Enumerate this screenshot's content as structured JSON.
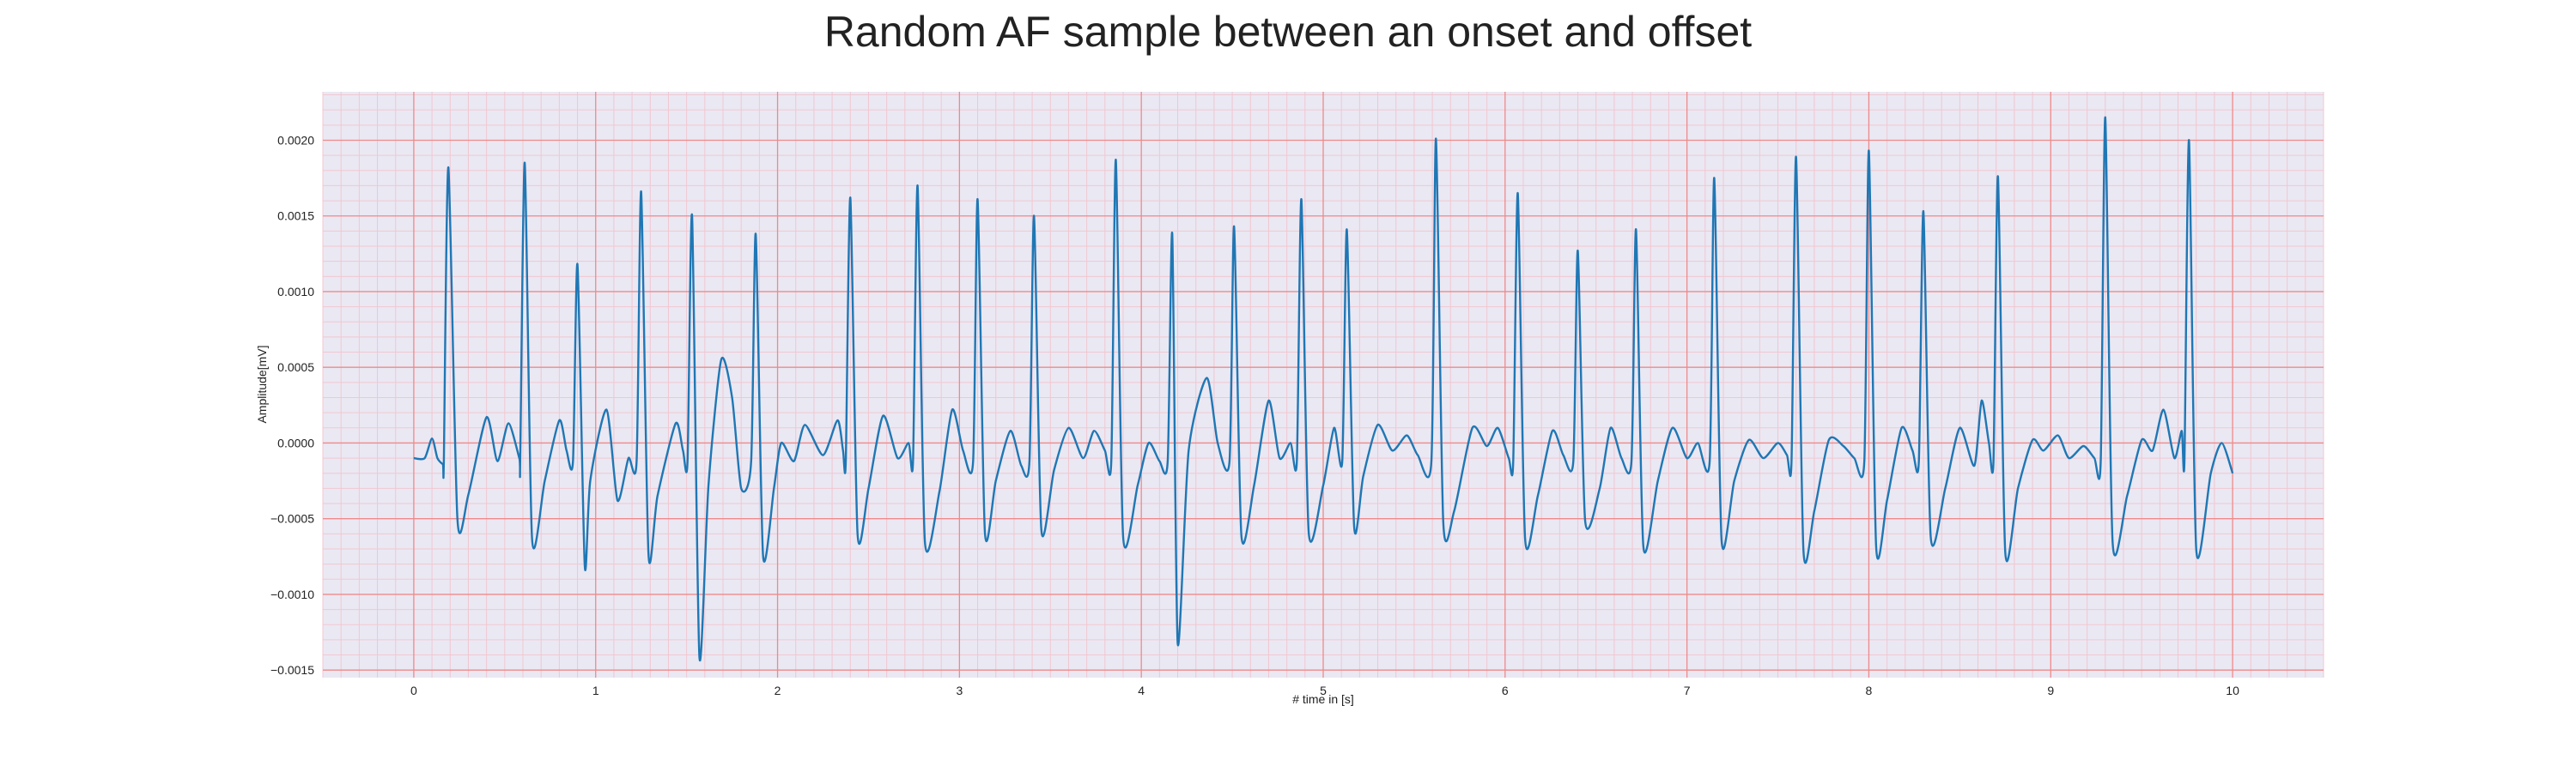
{
  "chart_data": {
    "type": "line",
    "title": "Random AF sample between an onset and offset",
    "xlabel": "# time in [s]",
    "ylabel": "Amplitude[mV]",
    "xlim": [
      -0.5,
      10.5
    ],
    "ylim": [
      -0.00155,
      0.00232
    ],
    "xticks": [
      0,
      1,
      2,
      3,
      4,
      5,
      6,
      7,
      8,
      9,
      10
    ],
    "xtick_labels": [
      "0",
      "1",
      "2",
      "3",
      "4",
      "5",
      "6",
      "7",
      "8",
      "9",
      "10"
    ],
    "yticks": [
      -0.0015,
      -0.001,
      -0.0005,
      0.0,
      0.0005,
      0.001,
      0.0015,
      0.002
    ],
    "ytick_labels": [
      "−0.0015",
      "−0.0010",
      "−0.0005",
      "0.0000",
      "0.0005",
      "0.0010",
      "0.0015",
      "0.0020"
    ],
    "grid": true,
    "colors": {
      "plot_background": "#eae8f3",
      "major_grid": "#ee8a8a",
      "minor_grid": "#f1c7d1",
      "line": "#1f77b4"
    },
    "series": [
      {
        "name": "",
        "r_peaks": [
          [
            0.19,
            0.00182
          ],
          [
            0.61,
            0.00185
          ],
          [
            0.9,
            0.00118
          ],
          [
            1.25,
            0.00166
          ],
          [
            1.53,
            0.0015
          ],
          [
            1.88,
            0.00138
          ],
          [
            2.4,
            0.00162
          ],
          [
            2.77,
            0.0017
          ],
          [
            3.1,
            0.00161
          ],
          [
            3.41,
            0.0015
          ],
          [
            3.86,
            0.00187
          ],
          [
            4.17,
            0.00138
          ],
          [
            4.51,
            0.00143
          ],
          [
            4.88,
            0.00161
          ],
          [
            5.13,
            0.00141
          ],
          [
            5.62,
            0.00201
          ],
          [
            6.07,
            0.00165
          ],
          [
            6.4,
            0.00127
          ],
          [
            6.72,
            0.00141
          ],
          [
            7.15,
            0.00175
          ],
          [
            7.6,
            0.00189
          ],
          [
            8.0,
            0.00193
          ],
          [
            8.3,
            0.00153
          ],
          [
            8.71,
            0.00176
          ],
          [
            9.3,
            0.00215
          ],
          [
            9.76,
            0.002
          ]
        ],
        "s_troughs": [
          [
            0.24,
            -0.0005
          ],
          [
            0.65,
            -0.00063
          ],
          [
            0.94,
            -0.00081
          ],
          [
            1.29,
            -0.00073
          ],
          [
            1.57,
            -0.00141
          ],
          [
            1.92,
            -0.00074
          ],
          [
            2.44,
            -0.0006
          ],
          [
            2.81,
            -0.00065
          ],
          [
            3.14,
            -0.00059
          ],
          [
            3.45,
            -0.00057
          ],
          [
            3.9,
            -0.00062
          ],
          [
            4.2,
            -0.00132
          ],
          [
            4.55,
            -0.00061
          ],
          [
            4.92,
            -0.00059
          ],
          [
            5.17,
            -0.00055
          ],
          [
            5.66,
            -0.00052
          ],
          [
            6.11,
            -0.00063
          ],
          [
            6.44,
            -0.00051
          ],
          [
            6.76,
            -0.00068
          ],
          [
            7.19,
            -0.00064
          ],
          [
            7.64,
            -0.0007
          ],
          [
            8.04,
            -0.00068
          ],
          [
            8.34,
            -0.00062
          ],
          [
            8.75,
            -0.00072
          ],
          [
            9.34,
            -0.00065
          ],
          [
            9.8,
            -0.0007
          ]
        ],
        "baseline_waves": [
          [
            0.0,
            -0.0001
          ],
          [
            0.06,
            -0.0001
          ],
          [
            0.1,
            3e-05
          ],
          [
            0.13,
            -0.0001
          ],
          [
            0.16,
            -0.00014
          ],
          [
            0.3,
            -0.00034
          ],
          [
            0.4,
            0.00017
          ],
          [
            0.46,
            -0.00012
          ],
          [
            0.52,
            0.00013
          ],
          [
            0.58,
            -0.0001
          ],
          [
            0.72,
            -0.00025
          ],
          [
            0.8,
            0.00015
          ],
          [
            0.84,
            -5e-05
          ],
          [
            0.97,
            -0.00025
          ],
          [
            1.06,
            0.00022
          ],
          [
            1.12,
            -0.00038
          ],
          [
            1.18,
            -0.0001
          ],
          [
            1.34,
            -0.00035
          ],
          [
            1.44,
            0.00013
          ],
          [
            1.48,
            -5e-05
          ],
          [
            1.62,
            -0.00028
          ],
          [
            1.69,
            0.00055
          ],
          [
            1.75,
            0.0003
          ],
          [
            1.8,
            -0.0003
          ],
          [
            1.98,
            -0.0003
          ],
          [
            2.02,
            0.0
          ],
          [
            2.09,
            -0.00012
          ],
          [
            2.15,
            0.00012
          ],
          [
            2.25,
            -8e-05
          ],
          [
            2.33,
            0.00015
          ],
          [
            2.36,
            -5e-05
          ],
          [
            2.5,
            -0.0003
          ],
          [
            2.58,
            0.00018
          ],
          [
            2.66,
            -0.0001
          ],
          [
            2.72,
            0.0
          ],
          [
            2.89,
            -0.00032
          ],
          [
            2.96,
            0.00022
          ],
          [
            3.02,
            -5e-05
          ],
          [
            3.2,
            -0.00025
          ],
          [
            3.28,
            8e-05
          ],
          [
            3.34,
            -0.00015
          ],
          [
            3.52,
            -0.00018
          ],
          [
            3.6,
            0.0001
          ],
          [
            3.68,
            -0.0001
          ],
          [
            3.74,
            8e-05
          ],
          [
            3.8,
            -5e-05
          ],
          [
            3.98,
            -0.00028
          ],
          [
            4.04,
            0.0
          ],
          [
            4.1,
            -0.00012
          ],
          [
            4.26,
            -5e-05
          ],
          [
            4.36,
            0.00043
          ],
          [
            4.42,
            0.0
          ],
          [
            4.62,
            -0.00028
          ],
          [
            4.7,
            0.00028
          ],
          [
            4.76,
            -0.0001
          ],
          [
            4.82,
            0.0
          ],
          [
            5.0,
            -0.00028
          ],
          [
            5.06,
            0.0001
          ],
          [
            5.22,
            -0.00022
          ],
          [
            5.3,
            0.00012
          ],
          [
            5.38,
            -5e-05
          ],
          [
            5.46,
            5e-05
          ],
          [
            5.52,
            -8e-05
          ],
          [
            5.72,
            -0.00045
          ],
          [
            5.82,
            0.0001
          ],
          [
            5.9,
            -2e-05
          ],
          [
            5.96,
            0.0001
          ],
          [
            6.02,
            -0.0001
          ],
          [
            6.18,
            -0.00035
          ],
          [
            6.26,
            8e-05
          ],
          [
            6.32,
            -8e-05
          ],
          [
            6.52,
            -0.0003
          ],
          [
            6.58,
            0.0001
          ],
          [
            6.64,
            -0.0001
          ],
          [
            6.84,
            -0.00025
          ],
          [
            6.92,
            0.0001
          ],
          [
            7.0,
            -0.0001
          ],
          [
            7.06,
            0.0
          ],
          [
            7.26,
            -0.00025
          ],
          [
            7.34,
            2e-05
          ],
          [
            7.42,
            -0.0001
          ],
          [
            7.5,
            0.0
          ],
          [
            7.55,
            -8e-05
          ],
          [
            7.7,
            -0.00045
          ],
          [
            7.78,
            2e-05
          ],
          [
            7.86,
            -2e-05
          ],
          [
            7.92,
            -0.0001
          ],
          [
            8.1,
            -0.00038
          ],
          [
            8.18,
            0.0001
          ],
          [
            8.24,
            -5e-05
          ],
          [
            8.42,
            -0.0003
          ],
          [
            8.5,
            0.0001
          ],
          [
            8.58,
            -0.00015
          ],
          [
            8.62,
            0.00028
          ],
          [
            8.66,
            0.0
          ],
          [
            8.82,
            -0.0003
          ],
          [
            8.9,
            2e-05
          ],
          [
            8.96,
            -5e-05
          ],
          [
            9.04,
            5e-05
          ],
          [
            9.1,
            -0.0001
          ],
          [
            9.18,
            -2e-05
          ],
          [
            9.24,
            -0.0001
          ],
          [
            9.42,
            -0.00035
          ],
          [
            9.5,
            2e-05
          ],
          [
            9.56,
            -5e-05
          ],
          [
            9.62,
            0.00022
          ],
          [
            9.68,
            -0.0001
          ],
          [
            9.72,
            8e-05
          ],
          [
            9.88,
            -0.0002
          ],
          [
            9.94,
            0.0
          ],
          [
            10.0,
            -0.0002
          ]
        ]
      }
    ]
  }
}
